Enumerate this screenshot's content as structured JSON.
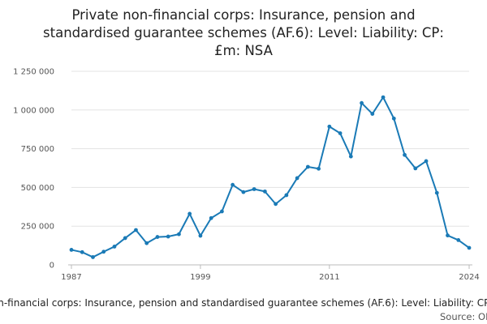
{
  "chart_data": {
    "type": "line",
    "title_lines": [
      "Private non-financial corps: Insurance, pension and",
      "standardised guarantee schemes (AF.6): Level: Liability: CP:",
      "£m: NSA"
    ],
    "footer_caption": "Private non-financial corps: Insurance, pension and standardised guarantee schemes (AF.6): Level: Liability: CP: £m: NSA",
    "source_label": "Source: ONS",
    "xlim": [
      1987,
      2024
    ],
    "ylim": [
      0,
      1250000
    ],
    "x_ticks": [
      1987,
      1999,
      2011,
      2024
    ],
    "x_tick_labels": [
      "1987",
      "1999",
      "2011",
      "2024"
    ],
    "y_ticks": [
      0,
      250000,
      500000,
      750000,
      1000000,
      1250000
    ],
    "y_tick_labels": [
      "0",
      "250 000",
      "500 000",
      "750 000",
      "1 000 000",
      "1 250 000"
    ],
    "grid": true,
    "line_color": "#1a7ab6",
    "x": [
      1987,
      1988,
      1989,
      1990,
      1991,
      1992,
      1993,
      1994,
      1995,
      1996,
      1997,
      1998,
      1999,
      2000,
      2001,
      2002,
      2003,
      2004,
      2005,
      2006,
      2007,
      2008,
      2009,
      2010,
      2011,
      2012,
      2013,
      2014,
      2015,
      2016,
      2017,
      2018,
      2019,
      2020,
      2021,
      2022,
      2023,
      2024
    ],
    "values": [
      97000,
      82000,
      50000,
      85000,
      118000,
      173000,
      225000,
      140000,
      180000,
      183000,
      198000,
      330000,
      188000,
      302000,
      345000,
      517000,
      470000,
      489000,
      474000,
      393000,
      450000,
      560000,
      633000,
      621000,
      893000,
      850000,
      700000,
      1045000,
      975000,
      1082000,
      945000,
      710000,
      623000,
      670000,
      465000,
      190000,
      160000,
      110000
    ]
  }
}
